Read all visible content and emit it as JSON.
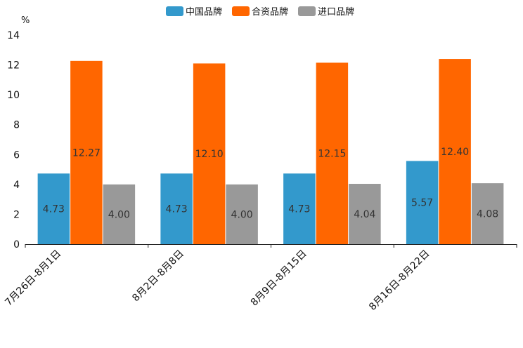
{
  "chart_data": {
    "type": "bar",
    "title": "",
    "ylabel": "%",
    "xlabel": "",
    "ylim": [
      0,
      14
    ],
    "yticks": [
      0,
      2,
      4,
      6,
      8,
      10,
      12,
      14
    ],
    "categories": [
      "7月26日-8月1日",
      "8月2日-8月8日",
      "8月9日-8月15日",
      "8月16日-8月22日"
    ],
    "series": [
      {
        "name": "中国品牌",
        "color": "#3399cc",
        "values": [
          4.73,
          4.73,
          4.73,
          5.57
        ],
        "labels": [
          "4.73",
          "4.73",
          "4.73",
          "5.57"
        ]
      },
      {
        "name": "合资品牌",
        "color": "#ff6600",
        "values": [
          12.27,
          12.1,
          12.15,
          12.4
        ],
        "labels": [
          "12.27",
          "12.10",
          "12.15",
          "12.40"
        ]
      },
      {
        "name": "进口品牌",
        "color": "#999999",
        "values": [
          4.0,
          4.0,
          4.04,
          4.08
        ],
        "labels": [
          "4.00",
          "4.00",
          "4.04",
          "4.08"
        ]
      }
    ],
    "legend_position": "top-center",
    "grid": false
  }
}
